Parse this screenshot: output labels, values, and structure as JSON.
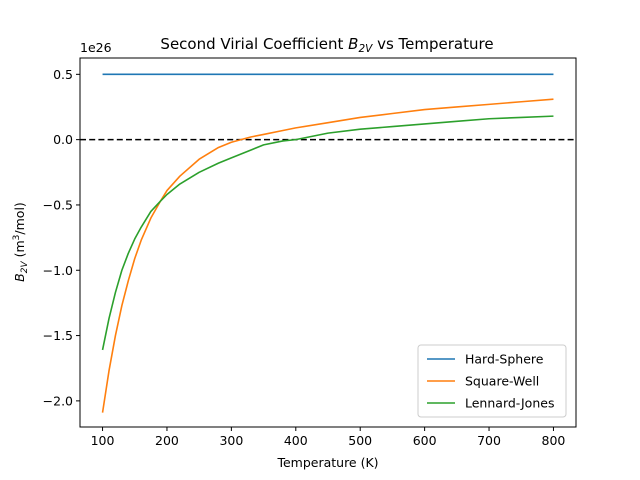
{
  "chart_data": {
    "type": "line",
    "title_prefix": "Second Virial Coefficient ",
    "title_symbol": "B",
    "title_subscript": "2V",
    "title_suffix": " vs Temperature",
    "xlabel": "Temperature (K)",
    "ylabel_symbol": "B",
    "ylabel_subscript": "2V",
    "ylabel_unit_prefix": " (m",
    "ylabel_unit_exponent": "3",
    "ylabel_unit_suffix": "/mol)",
    "y_offset_label": "1e26",
    "xlim": [
      65,
      835
    ],
    "ylim": [
      -2.2,
      0.625
    ],
    "xticks": [
      100,
      200,
      300,
      400,
      500,
      600,
      700,
      800
    ],
    "xtick_labels": [
      "100",
      "200",
      "300",
      "400",
      "500",
      "600",
      "700",
      "800"
    ],
    "yticks": [
      -2.0,
      -1.5,
      -1.0,
      -0.5,
      0.0,
      0.5
    ],
    "ytick_labels": [
      "−2.0",
      "−1.5",
      "−1.0",
      "−0.5",
      "0.0",
      "0.5"
    ],
    "reference_line": {
      "y": 0.0,
      "style": "dashed",
      "color": "#000000"
    },
    "legend_position": "lower-right",
    "x": [
      100,
      110,
      120,
      130,
      140,
      150,
      160,
      175,
      190,
      200,
      220,
      250,
      280,
      300,
      330,
      350,
      380,
      400,
      450,
      500,
      550,
      600,
      650,
      700,
      750,
      800
    ],
    "series": [
      {
        "name": "Hard-Sphere",
        "color": "#1f77b4",
        "values": [
          0.5,
          0.5,
          0.5,
          0.5,
          0.5,
          0.5,
          0.5,
          0.5,
          0.5,
          0.5,
          0.5,
          0.5,
          0.5,
          0.5,
          0.5,
          0.5,
          0.5,
          0.5,
          0.5,
          0.5,
          0.5,
          0.5,
          0.5,
          0.5,
          0.5,
          0.5
        ]
      },
      {
        "name": "Square-Well",
        "color": "#ff7f0e",
        "values": [
          -2.09,
          -1.77,
          -1.5,
          -1.27,
          -1.08,
          -0.91,
          -0.77,
          -0.6,
          -0.47,
          -0.39,
          -0.28,
          -0.15,
          -0.06,
          -0.02,
          0.02,
          0.04,
          0.07,
          0.09,
          0.13,
          0.17,
          0.2,
          0.23,
          0.25,
          0.27,
          0.29,
          0.31
        ]
      },
      {
        "name": "Lennard-Jones",
        "color": "#2ca02c",
        "values": [
          -1.61,
          -1.37,
          -1.17,
          -1.0,
          -0.87,
          -0.76,
          -0.67,
          -0.55,
          -0.47,
          -0.42,
          -0.34,
          -0.25,
          -0.18,
          -0.14,
          -0.08,
          -0.04,
          -0.01,
          0.0,
          0.05,
          0.08,
          0.1,
          0.12,
          0.14,
          0.16,
          0.17,
          0.18
        ]
      }
    ]
  }
}
